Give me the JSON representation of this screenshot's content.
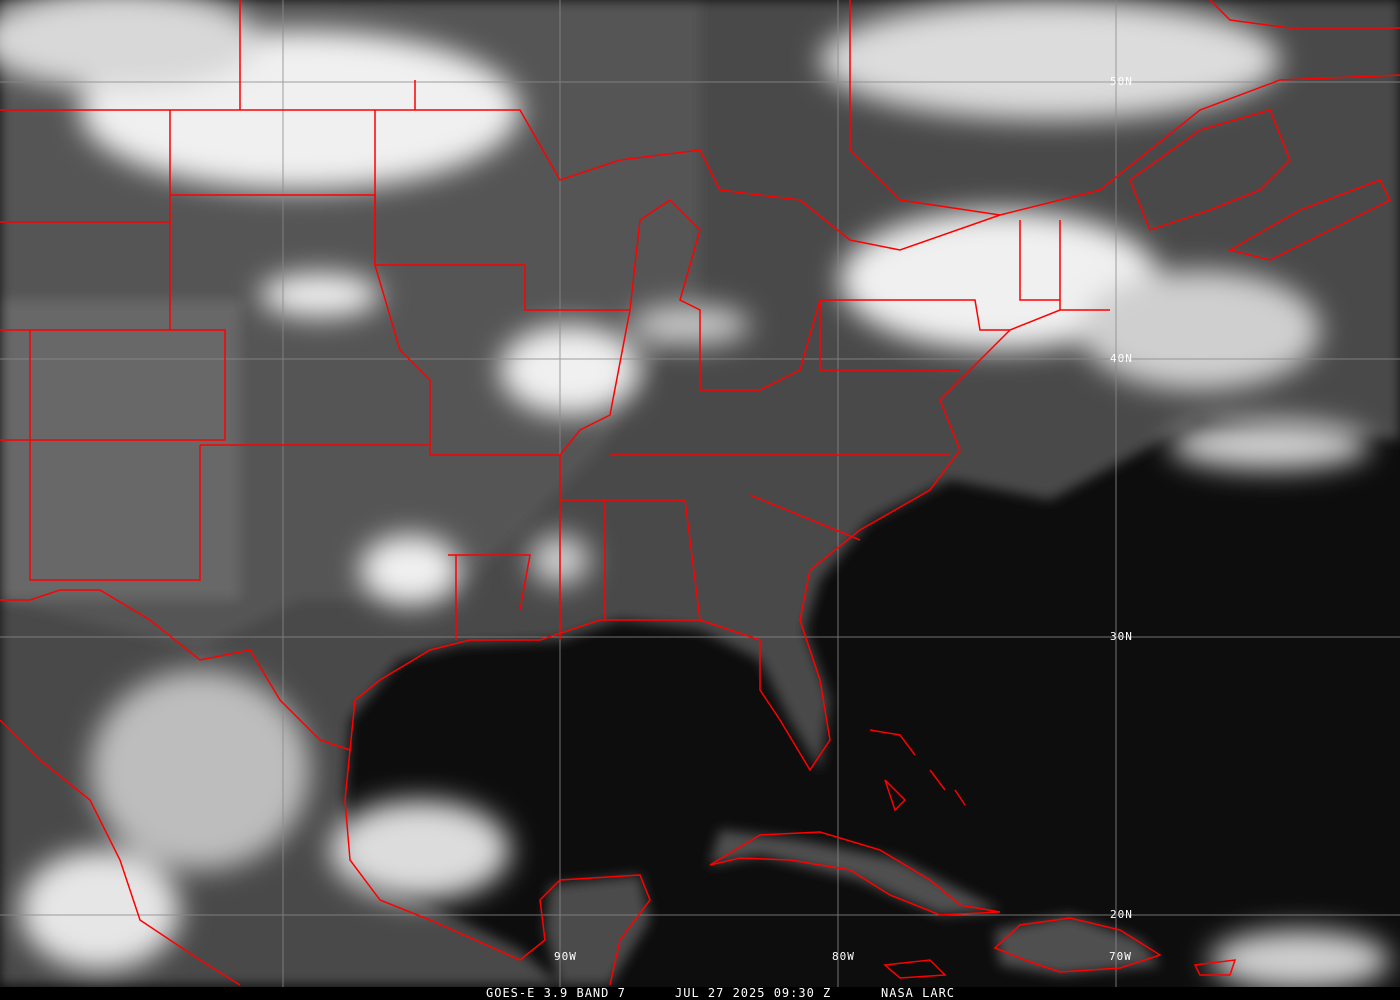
{
  "image": {
    "caption_satellite": "GOES-E 3.9 BAND 7",
    "caption_datetime": "JUL 27 2025 09:30 Z",
    "caption_source": "NASA LARC",
    "boundary_color": "#ff0000",
    "grid_color": "#8a8a8a"
  },
  "latitude_labels": [
    "50N",
    "40N",
    "30N",
    "20N"
  ],
  "longitude_labels": [
    "90W",
    "80W",
    "70W"
  ]
}
